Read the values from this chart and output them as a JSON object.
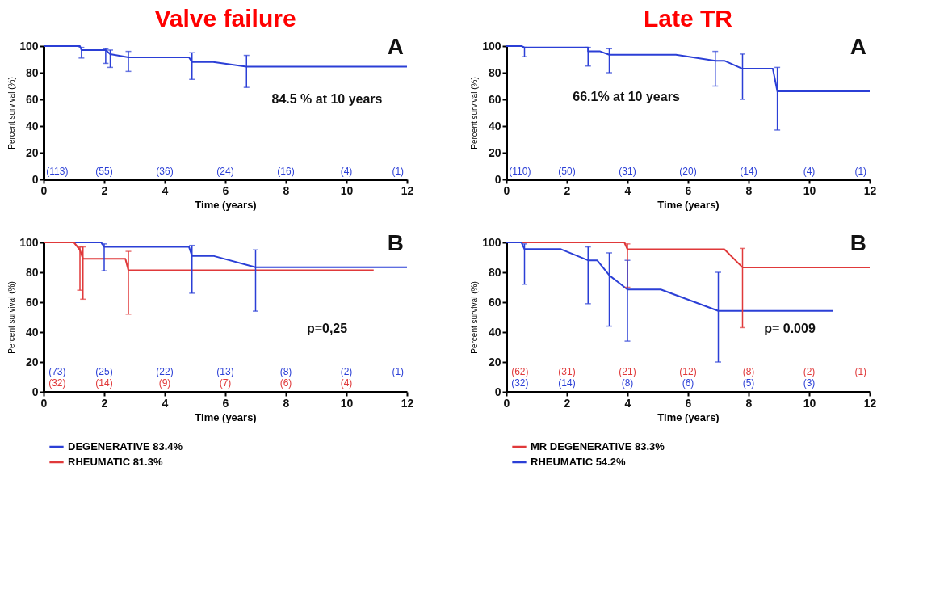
{
  "chart_data": [
    {
      "type": "line",
      "title": "Valve failure",
      "xlabel": "Time (years)",
      "ylabel": "Percent survival (%)",
      "xlim": [
        0,
        12
      ],
      "xticks": [
        0,
        2,
        4,
        6,
        8,
        10,
        12
      ],
      "ylim": [
        0,
        100
      ],
      "yticks": [
        0,
        20,
        40,
        60,
        80,
        100
      ],
      "grid": false,
      "marker": "none",
      "line_style": "solid",
      "series": [
        {
          "color": "#2b3fd6",
          "x": [
            0,
            1.2,
            1.25,
            1.9,
            2.05,
            2.2,
            2.8,
            4.8,
            4.9,
            5.6,
            6.7,
            12
          ],
          "values": [
            100,
            100,
            97,
            97,
            97,
            94,
            91.5,
            91.5,
            88,
            88,
            84.5,
            84.5
          ],
          "errors": [
            null,
            null,
            [
              91,
              99
            ],
            null,
            [
              87,
              98
            ],
            [
              84,
              97
            ],
            [
              81,
              96
            ],
            null,
            [
              75,
              95
            ],
            null,
            [
              69,
              93
            ],
            null
          ]
        }
      ],
      "annotations": [
        "A",
        "84.5 % at 10 years",
        "(113)",
        "(55)",
        "(36)",
        "(24)",
        "(16)",
        "(4)",
        "(1)"
      ]
    },
    {
      "type": "line",
      "title": "Late TR",
      "xlabel": "Time (years)",
      "ylabel": "Percent survival (%)",
      "xlim": [
        0,
        12
      ],
      "xticks": [
        0,
        2,
        4,
        6,
        8,
        10,
        12
      ],
      "ylim": [
        0,
        100
      ],
      "yticks": [
        0,
        20,
        40,
        60,
        80,
        100
      ],
      "grid": false,
      "marker": "none",
      "line_style": "solid",
      "series": [
        {
          "color": "#2b3fd6",
          "x": [
            0,
            0.5,
            0.6,
            2.7,
            2.7,
            3.1,
            3.4,
            5.6,
            6.9,
            7.2,
            7.8,
            8.8,
            8.95,
            12
          ],
          "values": [
            100,
            100,
            99,
            99,
            96,
            96,
            93.5,
            93.5,
            89,
            89,
            83,
            83,
            66.1,
            66.1
          ],
          "errors": [
            null,
            null,
            [
              92,
              99
            ],
            null,
            [
              85,
              99
            ],
            null,
            [
              80,
              98
            ],
            null,
            [
              70,
              96
            ],
            null,
            [
              60,
              94
            ],
            null,
            [
              37,
              84
            ],
            null
          ]
        }
      ],
      "annotations": [
        "A",
        "66.1% at 10 years",
        "(110)",
        "(50)",
        "(31)",
        "(20)",
        "(14)",
        "(4)",
        "(1)"
      ]
    },
    {
      "type": "line",
      "xlabel": "Time (years)",
      "ylabel": "Percent survival (%)",
      "xlim": [
        0,
        12
      ],
      "xticks": [
        0,
        2,
        4,
        6,
        8,
        10,
        12
      ],
      "ylim": [
        0,
        100
      ],
      "yticks": [
        0,
        20,
        40,
        60,
        80,
        100
      ],
      "grid": false,
      "marker": "none",
      "line_style": "solid",
      "legend": "bottom",
      "series": [
        {
          "name": "DEGENERATIVE 83.4%",
          "color": "#2b3fd6",
          "x": [
            0,
            1.9,
            2,
            4.8,
            4.9,
            5.6,
            7,
            12
          ],
          "values": [
            100,
            100,
            97,
            97,
            91,
            91,
            83.4,
            83.4
          ],
          "errors": [
            null,
            null,
            [
              81,
              99
            ],
            null,
            [
              66,
              98
            ],
            null,
            [
              54,
              95
            ],
            null
          ]
        },
        {
          "name": "RHEUMATIC 81.3%",
          "color": "#e0393a",
          "x": [
            0,
            1,
            1.2,
            1.3,
            2.7,
            2.8,
            10.9
          ],
          "values": [
            100,
            100,
            95,
            89,
            89,
            81.3,
            81.3
          ],
          "errors": [
            null,
            null,
            [
              68,
              97
            ],
            [
              62,
              97
            ],
            null,
            [
              52,
              94
            ],
            null
          ]
        }
      ],
      "annotations": [
        "B",
        "p=0,25",
        "(73)",
        "(25)",
        "(22)",
        "(13)",
        "(8)",
        "(2)",
        "(1)",
        "(32)",
        "(14)",
        "(9)",
        "(7)",
        "(6)",
        "(4)"
      ]
    },
    {
      "type": "line",
      "xlabel": "Time (years)",
      "ylabel": "Percent survival (%)",
      "xlim": [
        0,
        12
      ],
      "xticks": [
        0,
        2,
        4,
        6,
        8,
        10,
        12
      ],
      "ylim": [
        0,
        100
      ],
      "yticks": [
        0,
        20,
        40,
        60,
        80,
        100
      ],
      "grid": false,
      "marker": "none",
      "line_style": "solid",
      "legend": "bottom",
      "series": [
        {
          "name": "MR DEGENERATIVE 83.3%",
          "color": "#e0393a",
          "x": [
            0,
            3.9,
            4,
            7.2,
            7.8,
            12
          ],
          "values": [
            100,
            100,
            95.4,
            95.4,
            83.3,
            83.3
          ],
          "errors": [
            null,
            null,
            [
              70,
              99
            ],
            null,
            [
              43,
              96
            ],
            null
          ]
        },
        {
          "name": "RHEUMATIC 54.2%",
          "color": "#2b3fd6",
          "x": [
            0,
            0.5,
            0.6,
            1.8,
            2.7,
            3,
            3.4,
            4,
            5.1,
            7,
            10.8
          ],
          "values": [
            100,
            100,
            95.5,
            95.5,
            88,
            88,
            78,
            68.5,
            68.5,
            54.2,
            54.2
          ],
          "errors": [
            null,
            null,
            [
              72,
              99
            ],
            null,
            [
              59,
              97
            ],
            null,
            [
              44,
              93
            ],
            [
              34,
              88
            ],
            null,
            [
              20,
              80
            ],
            null
          ]
        }
      ],
      "annotations": [
        "B",
        "p= 0.009",
        "(62)",
        "(31)",
        "(21)",
        "(12)",
        "(8)",
        "(2)",
        "(1)",
        "(32)",
        "(14)",
        "(8)",
        "(6)",
        "(5)",
        "(3)"
      ]
    }
  ]
}
